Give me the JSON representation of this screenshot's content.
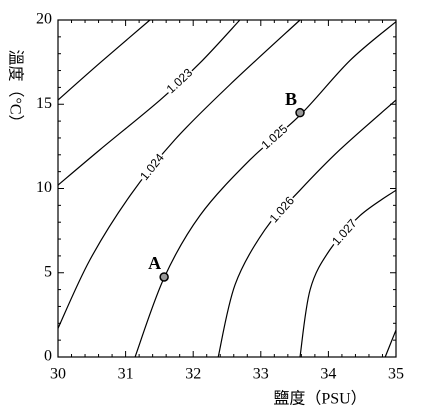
{
  "chart_data": {
    "type": "contour",
    "x_label": "鹽度（PSU）",
    "y_label": "溫度（°C）",
    "xlim": [
      30,
      35
    ],
    "xticks": [
      30,
      31,
      32,
      33,
      34,
      35
    ],
    "ylim": [
      0,
      20
    ],
    "yticks": [
      0,
      5,
      10,
      15,
      20
    ],
    "color": "#000000",
    "contours": [
      {
        "x": [
          30,
          30.62,
          31.36
        ],
        "y": [
          15.25,
          17.45,
          20
        ]
      },
      {
        "name": "1.023",
        "x": [
          30,
          30.62,
          31.51,
          32.1,
          32.69
        ],
        "y": [
          10.2,
          12.3,
          15.25,
          17.45,
          20
        ]
      },
      {
        "name": "1.024",
        "x": [
          30,
          30.47,
          31.07,
          31.73,
          32.54,
          33.58
        ],
        "y": [
          1.7,
          5.75,
          9.6,
          12.9,
          16.15,
          20
        ]
      },
      {
        "name": "1.025",
        "x": [
          31.14,
          31.57,
          32.1,
          32.84,
          33.58,
          34.32,
          35
        ],
        "y": [
          0,
          4.7,
          8.4,
          11.7,
          14.35,
          17.6,
          19.9
        ]
      },
      {
        "name": "1.026",
        "x": [
          32.37,
          32.62,
          33.06,
          33.58,
          34.17,
          35
        ],
        "y": [
          0,
          4.3,
          7.55,
          9.9,
          12.3,
          15.25
        ]
      },
      {
        "name": "1.027",
        "x": [
          33.58,
          33.73,
          34.02,
          34.47,
          35
        ],
        "y": [
          0,
          4,
          6.35,
          8.4,
          9.9
        ]
      },
      {
        "x": [
          34.84,
          35
        ],
        "y": [
          0,
          1.6
        ]
      }
    ],
    "points": [
      {
        "name": "A",
        "x": 31.57,
        "y": 4.75
      },
      {
        "name": "B",
        "x": 33.58,
        "y": 14.5
      }
    ]
  }
}
